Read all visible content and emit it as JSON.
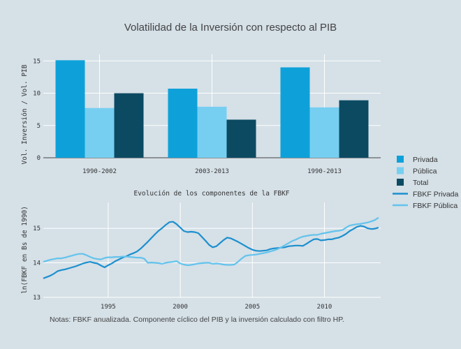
{
  "title": "Volatilidad de la Inversión con respecto al PIB",
  "note": "Notas: FBKF anualizada. Componente cíclico del PIB y la inversión calculado con filtro HP.",
  "colors": {
    "privada": "#0ea1d9",
    "publica": "#76cff1",
    "total": "#0c4a62",
    "background": "#d5e0e7"
  },
  "legend": {
    "items": [
      {
        "label": "Privada",
        "kind": "square",
        "color": "#0ea1d9"
      },
      {
        "label": "Pública",
        "kind": "square",
        "color": "#76cff1"
      },
      {
        "label": "Total",
        "kind": "square",
        "color": "#0c4a62"
      },
      {
        "label": "FBKF Privada",
        "kind": "line",
        "color": "#1c8fce"
      },
      {
        "label": "FBKF Pública",
        "kind": "line",
        "color": "#63c3ec"
      }
    ]
  },
  "chart_data": [
    {
      "type": "bar",
      "title": "",
      "ylabel": "Vol. Inversión / Vol. PIB",
      "xlabel": "",
      "categories": [
        "1990-2002",
        "2003-2013",
        "1990-2013"
      ],
      "ylim": [
        0,
        16
      ],
      "yticks": [
        0,
        5,
        10,
        15
      ],
      "grid": true,
      "series": [
        {
          "name": "Privada",
          "color": "#0ea1d9",
          "values": [
            15.1,
            10.7,
            14.0
          ]
        },
        {
          "name": "Pública",
          "color": "#76cff1",
          "values": [
            7.7,
            7.9,
            7.8
          ]
        },
        {
          "name": "Total",
          "color": "#0c4a62",
          "values": [
            10.0,
            5.9,
            8.9
          ]
        }
      ]
    },
    {
      "type": "line",
      "title": "Evolución de los componentes de la FBKF",
      "ylabel": "ln(FBKF en Bs de 1990)",
      "xlabel": "",
      "xlim": [
        1990.5,
        2013.9
      ],
      "ylim": [
        13,
        15.75
      ],
      "xticks": [
        1995,
        2000,
        2005,
        2010
      ],
      "yticks": [
        13,
        14,
        15
      ],
      "grid": true,
      "series": [
        {
          "name": "FBKF Privada",
          "color": "#1c8fce",
          "x": [
            1990.5,
            1990.75,
            1991.0,
            1991.25,
            1991.5,
            1991.75,
            1992.0,
            1992.25,
            1992.5,
            1992.75,
            1993.0,
            1993.25,
            1993.5,
            1993.75,
            1994.0,
            1994.25,
            1994.5,
            1994.75,
            1995.0,
            1995.25,
            1995.5,
            1995.75,
            1996.0,
            1996.25,
            1996.5,
            1996.75,
            1997.0,
            1997.25,
            1997.5,
            1997.75,
            1998.0,
            1998.25,
            1998.5,
            1998.75,
            1999.0,
            1999.25,
            1999.5,
            1999.75,
            2000.0,
            2000.25,
            2000.5,
            2000.75,
            2001.0,
            2001.25,
            2001.5,
            2001.75,
            2002.0,
            2002.25,
            2002.5,
            2002.75,
            2003.0,
            2003.25,
            2003.5,
            2003.75,
            2004.0,
            2004.25,
            2004.5,
            2004.75,
            2005.0,
            2005.25,
            2005.5,
            2005.75,
            2006.0,
            2006.25,
            2006.5,
            2006.75,
            2007.0,
            2007.25,
            2007.5,
            2007.75,
            2008.0,
            2008.25,
            2008.5,
            2008.75,
            2009.0,
            2009.25,
            2009.5,
            2009.75,
            2010.0,
            2010.25,
            2010.5,
            2010.75,
            2011.0,
            2011.25,
            2011.5,
            2011.75,
            2012.0,
            2012.25,
            2012.5,
            2012.75,
            2013.0,
            2013.25,
            2013.5,
            2013.75
          ],
          "values": [
            13.55,
            13.59,
            13.63,
            13.69,
            13.76,
            13.79,
            13.81,
            13.84,
            13.87,
            13.9,
            13.94,
            13.98,
            14.01,
            14.03,
            14.0,
            13.98,
            13.92,
            13.87,
            13.93,
            13.98,
            14.05,
            14.1,
            14.15,
            14.19,
            14.24,
            14.28,
            14.33,
            14.41,
            14.51,
            14.61,
            14.72,
            14.83,
            14.93,
            15.01,
            15.1,
            15.18,
            15.19,
            15.12,
            15.02,
            14.92,
            14.89,
            14.9,
            14.89,
            14.86,
            14.75,
            14.64,
            14.52,
            14.45,
            14.48,
            14.57,
            14.66,
            14.73,
            14.71,
            14.66,
            14.61,
            14.55,
            14.49,
            14.43,
            14.38,
            14.35,
            14.34,
            14.35,
            14.36,
            14.4,
            14.42,
            14.43,
            14.44,
            14.45,
            14.48,
            14.49,
            14.5,
            14.5,
            14.49,
            14.55,
            14.62,
            14.68,
            14.69,
            14.65,
            14.66,
            14.68,
            14.68,
            14.71,
            14.73,
            14.78,
            14.84,
            14.92,
            14.98,
            15.04,
            15.07,
            15.05,
            15.0,
            14.98,
            14.99,
            15.02
          ]
        },
        {
          "name": "FBKF Pública",
          "color": "#63c3ec",
          "x": [
            1990.5,
            1990.75,
            1991.0,
            1991.25,
            1991.5,
            1991.75,
            1992.0,
            1992.25,
            1992.5,
            1992.75,
            1993.0,
            1993.25,
            1993.5,
            1993.75,
            1994.0,
            1994.25,
            1994.5,
            1994.75,
            1995.0,
            1995.25,
            1995.5,
            1995.75,
            1996.0,
            1996.25,
            1996.5,
            1996.75,
            1997.0,
            1997.25,
            1997.5,
            1997.75,
            1998.0,
            1998.25,
            1998.5,
            1998.75,
            1999.0,
            1999.25,
            1999.5,
            1999.75,
            2000.0,
            2000.25,
            2000.5,
            2000.75,
            2001.0,
            2001.25,
            2001.5,
            2001.75,
            2002.0,
            2002.25,
            2002.5,
            2002.75,
            2003.0,
            2003.25,
            2003.5,
            2003.75,
            2004.0,
            2004.25,
            2004.5,
            2004.75,
            2005.0,
            2005.25,
            2005.5,
            2005.75,
            2006.0,
            2006.25,
            2006.5,
            2006.75,
            2007.0,
            2007.25,
            2007.5,
            2007.75,
            2008.0,
            2008.25,
            2008.5,
            2008.75,
            2009.0,
            2009.25,
            2009.5,
            2009.75,
            2010.0,
            2010.25,
            2010.5,
            2010.75,
            2011.0,
            2011.25,
            2011.5,
            2011.75,
            2012.0,
            2012.25,
            2012.5,
            2012.75,
            2013.0,
            2013.25,
            2013.5,
            2013.75
          ],
          "values": [
            14.03,
            14.06,
            14.09,
            14.11,
            14.13,
            14.13,
            14.15,
            14.18,
            14.21,
            14.24,
            14.26,
            14.26,
            14.22,
            14.17,
            14.13,
            14.11,
            14.1,
            14.14,
            14.16,
            14.16,
            14.17,
            14.17,
            14.18,
            14.18,
            14.17,
            14.16,
            14.15,
            14.15,
            14.12,
            14.0,
            14.01,
            14.0,
            13.99,
            13.97,
            14.0,
            14.02,
            14.03,
            14.05,
            13.98,
            13.95,
            13.93,
            13.94,
            13.96,
            13.98,
            13.99,
            14.0,
            14.0,
            13.97,
            13.98,
            13.97,
            13.95,
            13.94,
            13.94,
            13.95,
            14.03,
            14.12,
            14.2,
            14.22,
            14.23,
            14.24,
            14.26,
            14.28,
            14.3,
            14.33,
            14.36,
            14.4,
            14.45,
            14.51,
            14.57,
            14.63,
            14.67,
            14.72,
            14.76,
            14.78,
            14.8,
            14.81,
            14.81,
            14.84,
            14.86,
            14.88,
            14.9,
            14.92,
            14.93,
            14.95,
            15.02,
            15.08,
            15.1,
            15.12,
            15.13,
            15.15,
            15.17,
            15.2,
            15.24,
            15.31
          ]
        }
      ]
    }
  ]
}
